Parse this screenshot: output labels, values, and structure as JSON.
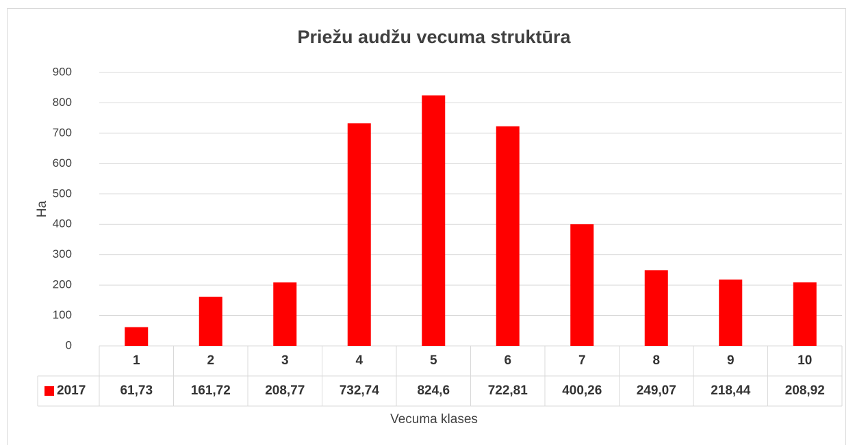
{
  "chart_data": {
    "type": "bar",
    "title": "Priežu audžu vecuma struktūra",
    "x_label": "Vecuma klases",
    "y_label": "Ha",
    "categories": [
      "1",
      "2",
      "3",
      "4",
      "5",
      "6",
      "7",
      "8",
      "9",
      "10"
    ],
    "series": [
      {
        "name": "2017",
        "color": "#ff0000",
        "values": [
          61.73,
          161.72,
          208.77,
          732.74,
          824.6,
          722.81,
          400.26,
          249.07,
          218.44,
          208.92
        ],
        "value_labels": [
          "61,73",
          "161,72",
          "208,77",
          "732,74",
          "824,6",
          "722,81",
          "400,26",
          "249,07",
          "218,44",
          "208,92"
        ]
      }
    ],
    "ylim": [
      0,
      900
    ],
    "yticks": [
      0,
      100,
      200,
      300,
      400,
      500,
      600,
      700,
      800,
      900
    ],
    "grid": true
  }
}
